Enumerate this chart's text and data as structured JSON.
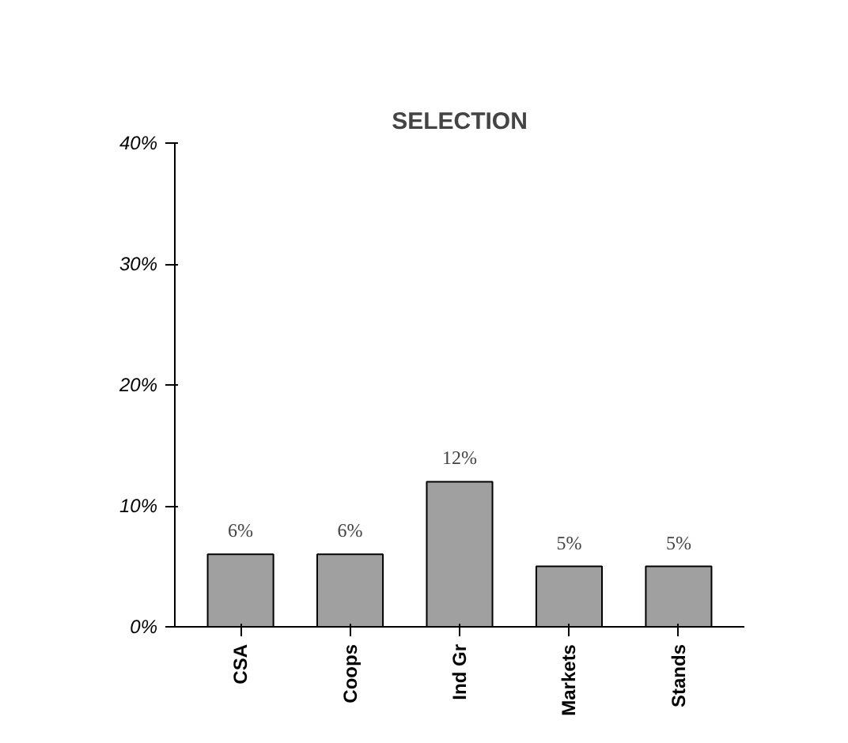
{
  "chart_data": {
    "type": "bar",
    "title": "SELECTION",
    "categories": [
      "CSA",
      "Coops",
      "Ind Gr",
      "Markets",
      "Stands"
    ],
    "values": [
      6,
      6,
      12,
      5,
      5
    ],
    "value_labels": [
      "6%",
      "6%",
      "12%",
      "5%",
      "5%"
    ],
    "color": "#a0a0a0",
    "ylim": [
      0,
      40
    ],
    "yticks": [
      {
        "value": 0,
        "label": "0%"
      },
      {
        "value": 10,
        "label": "10%"
      },
      {
        "value": 20,
        "label": "20%"
      },
      {
        "value": 30,
        "label": "30%"
      },
      {
        "value": 40,
        "label": "40%"
      }
    ],
    "grid": false
  }
}
